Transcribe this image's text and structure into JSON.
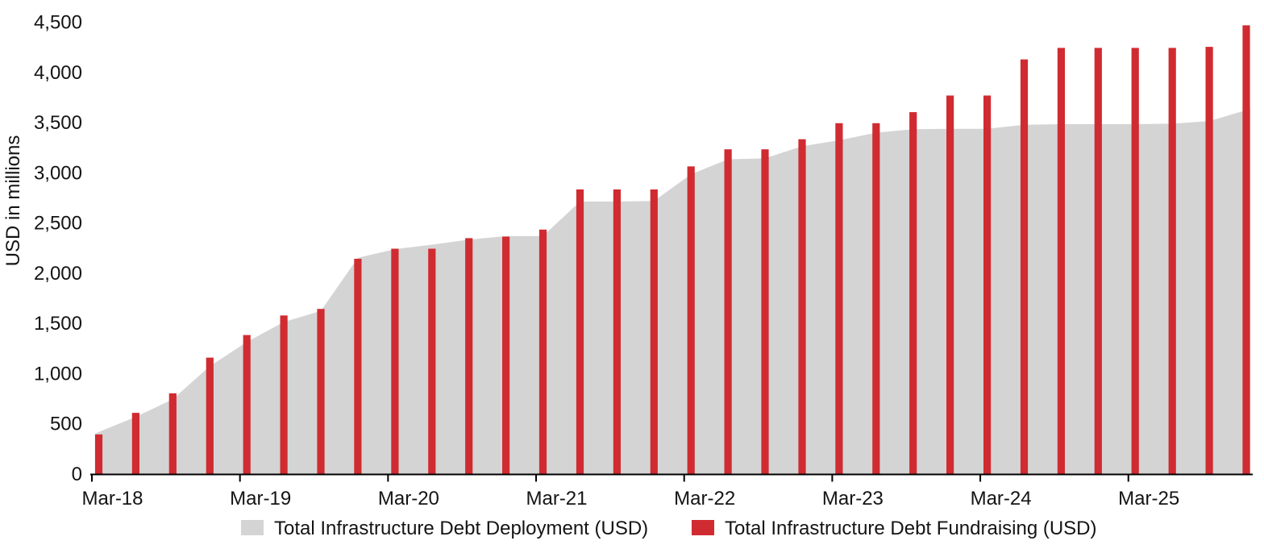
{
  "chart_data": {
    "type": "area+bar",
    "title": "",
    "xlabel": "",
    "ylabel": "USD in millions",
    "ylim": [
      0,
      4500
    ],
    "ytick_step": 500,
    "ytick_labels": [
      "0",
      "500",
      "1,000",
      "1,500",
      "2,000",
      "2,500",
      "3,000",
      "3,500",
      "4,000",
      "4,500"
    ],
    "xtick_labels": [
      "Mar-18",
      "Mar-19",
      "Mar-20",
      "Mar-21",
      "Mar-22",
      "Mar-23",
      "Mar-24",
      "Mar-25"
    ],
    "xtick_every": 4,
    "grid": "off",
    "legend_position": "bottom",
    "categories": [
      "Mar-18",
      "Jun-18",
      "Sep-18",
      "Dec-18",
      "Mar-19",
      "Jun-19",
      "Sep-19",
      "Dec-19",
      "Mar-20",
      "Jun-20",
      "Sep-20",
      "Dec-20",
      "Mar-21",
      "Jun-21",
      "Sep-21",
      "Dec-21",
      "Mar-22",
      "Jun-22",
      "Sep-22",
      "Dec-22",
      "Mar-23",
      "Jun-23",
      "Sep-23",
      "Dec-23",
      "Mar-24",
      "Jun-24",
      "Sep-24",
      "Dec-24",
      "Mar-25",
      "Jun-25",
      "Sep-25",
      "Dec-25"
    ],
    "series": [
      {
        "name": "Total Infrastructure Debt Deployment (USD)",
        "type": "area",
        "color": "#D4D4D5",
        "values": [
          400,
          565,
          740,
          1070,
          1310,
          1510,
          1620,
          2150,
          2235,
          2280,
          2330,
          2365,
          2365,
          2710,
          2710,
          2715,
          2980,
          3130,
          3140,
          3260,
          3320,
          3395,
          3430,
          3435,
          3435,
          3475,
          3480,
          3480,
          3480,
          3485,
          3510,
          3620
        ],
        "right_edge_value": 3640
      },
      {
        "name": "Total Infrastructure Debt Fundraising (USD)",
        "type": "bar",
        "color": "#D02B31",
        "values": [
          390,
          605,
          800,
          1155,
          1380,
          1575,
          1640,
          2140,
          2240,
          2240,
          2345,
          2360,
          2430,
          2830,
          2830,
          2830,
          3060,
          3230,
          3230,
          3330,
          3490,
          3490,
          3600,
          3765,
          3765,
          4125,
          4240,
          4240,
          4240,
          4240,
          4250,
          4465
        ]
      }
    ]
  },
  "colors": {
    "background": "#FFFFFF",
    "axis_line": "#000000",
    "text": "#141414"
  }
}
